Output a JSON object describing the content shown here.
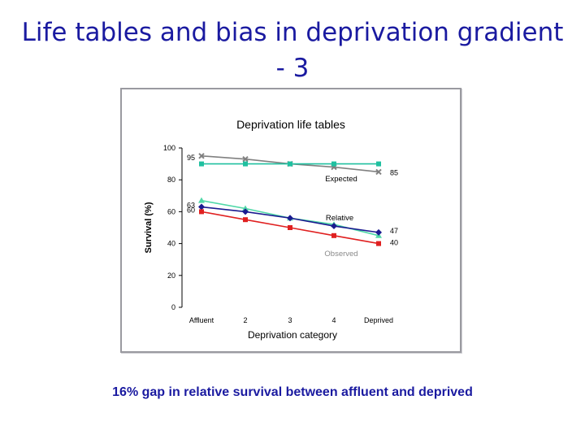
{
  "slide": {
    "title_line1": "Life tables and bias in deprivation gradient",
    "title_line2": "- 3",
    "caption": "16% gap in relative survival between affluent and deprived"
  },
  "chart_data": {
    "type": "line",
    "title": "Deprivation life tables",
    "xlabel": "Deprivation category",
    "ylabel": "Survival (%)",
    "categories": [
      "Affluent",
      "2",
      "3",
      "4",
      "Deprived"
    ],
    "ylim": [
      0,
      100
    ],
    "yticks": [
      0,
      20,
      40,
      60,
      80,
      100
    ],
    "grid": false,
    "series": [
      {
        "name": "Expected",
        "color": "#808080",
        "marker": "x",
        "values": [
          95,
          93,
          90,
          88,
          85
        ]
      },
      {
        "name": "",
        "color": "#20c0a0",
        "marker": "square",
        "values": [
          90,
          90,
          90,
          90,
          90
        ]
      },
      {
        "name": "Relative",
        "color": "#50d8a8",
        "marker": "triangle",
        "values": [
          67,
          62,
          56,
          52,
          45
        ]
      },
      {
        "name": "",
        "color": "#1a1a90",
        "marker": "diamond",
        "values": [
          63,
          60,
          56,
          51,
          47
        ]
      },
      {
        "name": "Observed",
        "color": "#e02020",
        "marker": "square",
        "values": [
          60,
          55,
          50,
          45,
          40
        ]
      }
    ],
    "value_labels": [
      {
        "text": "95",
        "series": 0,
        "index": 0
      },
      {
        "text": "85",
        "series": 0,
        "index": 4
      },
      {
        "text": "63",
        "series": 3,
        "index": 0
      },
      {
        "text": "60",
        "series": 4,
        "index": 0
      },
      {
        "text": "47",
        "series": 3,
        "index": 4
      },
      {
        "text": "40",
        "series": 4,
        "index": 4
      }
    ]
  }
}
